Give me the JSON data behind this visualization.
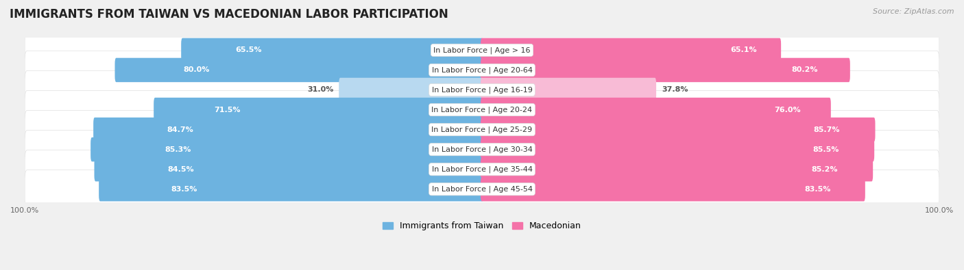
{
  "title": "IMMIGRANTS FROM TAIWAN VS MACEDONIAN LABOR PARTICIPATION",
  "source": "Source: ZipAtlas.com",
  "categories": [
    "In Labor Force | Age > 16",
    "In Labor Force | Age 20-64",
    "In Labor Force | Age 16-19",
    "In Labor Force | Age 20-24",
    "In Labor Force | Age 25-29",
    "In Labor Force | Age 30-34",
    "In Labor Force | Age 35-44",
    "In Labor Force | Age 45-54"
  ],
  "taiwan_values": [
    65.5,
    80.0,
    31.0,
    71.5,
    84.7,
    85.3,
    84.5,
    83.5
  ],
  "macedonian_values": [
    65.1,
    80.2,
    37.8,
    76.0,
    85.7,
    85.5,
    85.2,
    83.5
  ],
  "taiwan_color": "#6db3e0",
  "taiwan_color_light": "#b8d9f0",
  "macedonian_color": "#f472a8",
  "macedonian_color_light": "#f8bbd6",
  "light_threshold": 50,
  "background_color": "#f0f0f0",
  "row_bg_color": "#ffffff",
  "row_border_color": "#e0e0e0",
  "max_value": 100.0,
  "legend_taiwan": "Immigrants from Taiwan",
  "legend_macedonian": "Macedonian",
  "title_fontsize": 12,
  "label_fontsize": 8,
  "value_fontsize": 8,
  "source_fontsize": 8
}
